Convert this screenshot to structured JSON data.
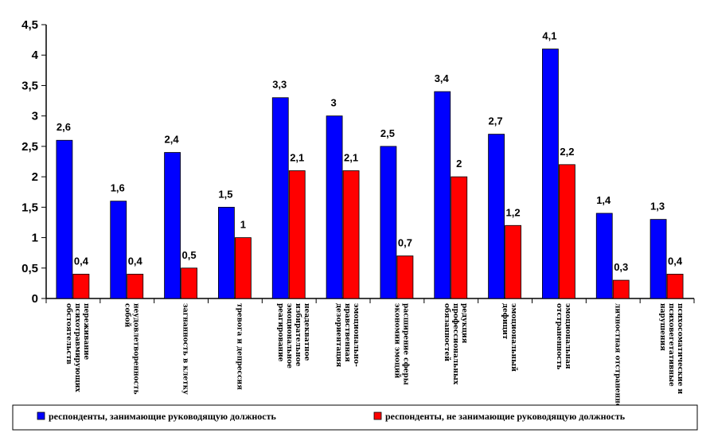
{
  "chart_data": {
    "type": "bar",
    "categories": [
      [
        "переживание",
        "психотравмирующих",
        "обстоятельств"
      ],
      [
        "неудовлетворенность",
        "собой"
      ],
      [
        "загнанность в клетку"
      ],
      [
        "тревога и депрессия"
      ],
      [
        "неадекватное",
        "избирательное",
        "эмоциональное",
        "реагирование"
      ],
      [
        "эмоционально-",
        "нравственная",
        "дезориентация"
      ],
      [
        "расширение сферы",
        "экономии эмоций"
      ],
      [
        "редукция",
        "профессиональных",
        "обязанностей"
      ],
      [
        "эмоциональный",
        "дефицит"
      ],
      [
        "эмоциональная",
        "отстраненность"
      ],
      [
        "личностная отстраненность"
      ],
      [
        "психосоматические и",
        "психовегетативные",
        "нарушения"
      ]
    ],
    "series": [
      {
        "name": "респонденты, занимающие руководящую должность",
        "color": "#0000FF",
        "values": [
          2.6,
          1.6,
          2.4,
          1.5,
          3.3,
          3.0,
          2.5,
          3.4,
          2.7,
          4.1,
          1.4,
          1.3
        ],
        "labels": [
          "2,6",
          "1,6",
          "2,4",
          "1,5",
          "3,3",
          "3",
          "2,5",
          "3,4",
          "2,7",
          "4,1",
          "1,4",
          "1,3"
        ]
      },
      {
        "name": "респонденты, не занимающие руководящую должность",
        "color": "#FF0000",
        "values": [
          0.4,
          0.4,
          0.5,
          1.0,
          2.1,
          2.1,
          0.7,
          2.0,
          1.2,
          2.2,
          0.3,
          0.4
        ],
        "labels": [
          "0,4",
          "0,4",
          "0,5",
          "1",
          "2,1",
          "2,1",
          "0,7",
          "2",
          "1,2",
          "2,2",
          "0,3",
          "0,4"
        ]
      }
    ],
    "ylim": [
      0,
      4.5
    ],
    "yticks": [
      0,
      0.5,
      1,
      1.5,
      2,
      2.5,
      3,
      3.5,
      4,
      4.5
    ],
    "ytick_labels": [
      "0",
      "0,5",
      "1",
      "1,5",
      "2",
      "2,5",
      "3",
      "3,5",
      "4",
      "4,5"
    ],
    "grid": false,
    "legend_position": "bottom"
  }
}
